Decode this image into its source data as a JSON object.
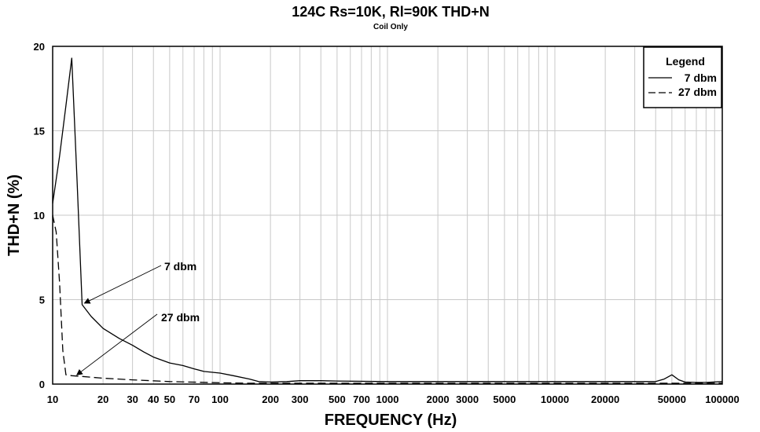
{
  "chart_data": {
    "type": "line",
    "title": "124C Rs=10K, Rl=90K  THD+N",
    "subtitle": "Coil Only",
    "xlabel": "FREQUENCY (Hz)",
    "ylabel": "THD+N (%)",
    "x_scale": "log",
    "xlim": [
      10,
      100000
    ],
    "ylim": [
      0,
      20
    ],
    "grid": true,
    "legend_title": "Legend",
    "legend_position": "top-right",
    "x_ticks": [
      10,
      20,
      30,
      40,
      50,
      70,
      100,
      200,
      300,
      500,
      700,
      1000,
      2000,
      3000,
      5000,
      10000,
      20000,
      50000,
      100000
    ],
    "x_tick_labels": [
      "10",
      "20",
      "30",
      "40",
      "50",
      "70",
      "100",
      "200",
      "300",
      "500",
      "700",
      "1000",
      "2000",
      "3000",
      "5000",
      "10000",
      "20000",
      "50000",
      "100000"
    ],
    "y_ticks": [
      0,
      5,
      10,
      15,
      20
    ],
    "y_tick_labels": [
      "0",
      "5",
      "10",
      "15",
      "20"
    ],
    "series": [
      {
        "name": "7 dbm",
        "style": "solid",
        "x": [
          10,
          11,
          12,
          13,
          14,
          15,
          17,
          20,
          25,
          30,
          35,
          40,
          50,
          60,
          70,
          80,
          100,
          120,
          150,
          170,
          200,
          250,
          300,
          400,
          500,
          1000,
          2000,
          5000,
          10000,
          20000,
          30000,
          40000,
          45000,
          50000,
          55000,
          60000,
          70000,
          80000,
          100000
        ],
        "y": [
          10.7,
          13.5,
          16.5,
          19.3,
          12.0,
          4.7,
          4.0,
          3.3,
          2.7,
          2.3,
          1.9,
          1.6,
          1.25,
          1.1,
          0.9,
          0.75,
          0.65,
          0.5,
          0.3,
          0.15,
          0.12,
          0.15,
          0.2,
          0.2,
          0.18,
          0.15,
          0.15,
          0.15,
          0.15,
          0.15,
          0.15,
          0.15,
          0.3,
          0.55,
          0.25,
          0.12,
          0.1,
          0.1,
          0.15
        ]
      },
      {
        "name": "27 dbm",
        "style": "dashed",
        "x": [
          10,
          10.5,
          11,
          11.5,
          12,
          13,
          15,
          20,
          30,
          50,
          100,
          150,
          200,
          500,
          1000,
          10000,
          100000
        ],
        "y": [
          10.0,
          9.0,
          6.0,
          2.0,
          0.55,
          0.5,
          0.45,
          0.35,
          0.25,
          0.15,
          0.08,
          0.05,
          0.05,
          0.05,
          0.05,
          0.05,
          0.05
        ]
      }
    ],
    "annotations": [
      {
        "text": "7 dbm",
        "target_x": 15,
        "target_y": 4.7
      },
      {
        "text": "27 dbm",
        "target_x": 13.5,
        "target_y": 0.45
      }
    ]
  }
}
